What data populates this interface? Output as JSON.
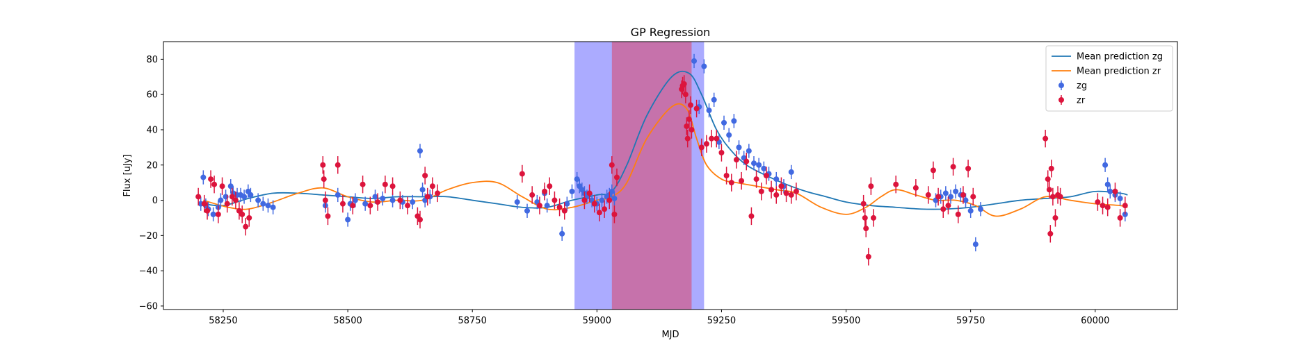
{
  "chart_data": {
    "type": "scatter",
    "title": "GP Regression",
    "xlabel": "MJD",
    "ylabel": "Flux [uJy]",
    "xlim": [
      58130,
      60165
    ],
    "ylim": [
      -62,
      90
    ],
    "xticks": [
      58250,
      58500,
      58750,
      59000,
      59250,
      59500,
      59750,
      60000
    ],
    "yticks": [
      -60,
      -40,
      -20,
      0,
      20,
      40,
      60,
      80
    ],
    "grid": false,
    "legend_position": "top-right",
    "shaded_regions": [
      {
        "x0": 58955,
        "x1": 59215,
        "color": "#0000ff",
        "opacity": 0.33
      },
      {
        "x0": 59030,
        "x1": 59190,
        "color": "#ff0000",
        "opacity": 0.33
      }
    ],
    "lines": [
      {
        "name": "Mean prediction zg",
        "color": "#1f77b4",
        "x": [
          58210,
          58250,
          58300,
          58350,
          58400,
          58450,
          58500,
          58550,
          58600,
          58650,
          58700,
          58750,
          58800,
          58850,
          58900,
          58950,
          59000,
          59030,
          59060,
          59100,
          59150,
          59185,
          59210,
          59240,
          59270,
          59300,
          59340,
          59380,
          59420,
          59460,
          59500,
          59550,
          59600,
          59650,
          59700,
          59750,
          59800,
          59850,
          59900,
          59950,
          60000,
          60050,
          60065
        ],
        "y": [
          -2,
          -3,
          1,
          4,
          4,
          3,
          2,
          1,
          2,
          2,
          2,
          0,
          -2,
          -4,
          -4,
          0,
          3,
          5,
          20,
          48,
          70,
          72,
          60,
          40,
          28,
          20,
          14,
          9,
          5,
          2,
          -1,
          -3,
          -4,
          -5,
          -5,
          -4,
          -2,
          0,
          1,
          2,
          5,
          4,
          3
        ]
      },
      {
        "name": "Mean prediction zr",
        "color": "#ff7f0e",
        "x": [
          58210,
          58260,
          58300,
          58350,
          58400,
          58450,
          58500,
          58550,
          58600,
          58650,
          58700,
          58750,
          58800,
          58850,
          58900,
          58950,
          59000,
          59030,
          59060,
          59100,
          59150,
          59180,
          59200,
          59220,
          59250,
          59280,
          59320,
          59360,
          59400,
          59450,
          59500,
          59540,
          59570,
          59600,
          59640,
          59680,
          59720,
          59760,
          59800,
          59850,
          59900,
          59950,
          60000,
          60050,
          60065
        ],
        "y": [
          0,
          -4,
          -5,
          -1,
          4,
          7,
          2,
          -1,
          0,
          0,
          6,
          10,
          10,
          2,
          -5,
          -4,
          0,
          2,
          10,
          35,
          53,
          52,
          35,
          20,
          12,
          10,
          8,
          6,
          4,
          -4,
          -8,
          -4,
          2,
          6,
          3,
          0,
          0,
          -3,
          -9,
          -5,
          2,
          0,
          -2,
          -3,
          -4
        ]
      }
    ],
    "series": [
      {
        "name": "zg",
        "color": "#4169e1",
        "err": 4,
        "x": [
          58205,
          58210,
          58215,
          58220,
          58230,
          58240,
          58245,
          58255,
          58265,
          58270,
          58278,
          58285,
          58292,
          58300,
          58305,
          58320,
          58330,
          58340,
          58350,
          58455,
          58480,
          58500,
          58505,
          58515,
          58535,
          58555,
          58570,
          58590,
          58610,
          58630,
          58645,
          58650,
          58655,
          58665,
          58840,
          58860,
          58880,
          58895,
          58900,
          58930,
          58940,
          58950,
          58960,
          58965,
          58970,
          58975,
          58980,
          58990,
          59000,
          59010,
          59020,
          59025,
          59030,
          59035,
          59195,
          59205,
          59215,
          59225,
          59235,
          59245,
          59255,
          59265,
          59275,
          59285,
          59295,
          59305,
          59315,
          59325,
          59335,
          59345,
          59360,
          59375,
          59390,
          59680,
          59690,
          59700,
          59710,
          59720,
          59730,
          59740,
          59750,
          59760,
          59770,
          60020,
          60025,
          60030,
          60040,
          60050,
          60060
        ],
        "y": [
          -2,
          13,
          -3,
          -5,
          -8,
          -4,
          0,
          2,
          8,
          4,
          3,
          3,
          2,
          5,
          3,
          0,
          -2,
          -3,
          -4,
          -3,
          3,
          -11,
          -2,
          0,
          -2,
          2,
          1,
          0,
          -1,
          -1,
          28,
          6,
          0,
          2,
          -1,
          -6,
          -1,
          4,
          -3,
          -19,
          -2,
          5,
          12,
          8,
          6,
          4,
          2,
          0,
          -2,
          0,
          2,
          3,
          5,
          1,
          79,
          53,
          76,
          51,
          57,
          33,
          44,
          37,
          45,
          30,
          24,
          28,
          21,
          20,
          18,
          15,
          12,
          8,
          16,
          0,
          2,
          4,
          2,
          5,
          3,
          0,
          -6,
          -25,
          -5,
          20,
          9,
          5,
          3,
          1,
          -8
        ]
      },
      {
        "name": "zr",
        "color": "#dc143c",
        "err": 5,
        "x": [
          58200,
          58212,
          58218,
          58225,
          58232,
          58240,
          58248,
          58258,
          58268,
          58275,
          58282,
          58288,
          58295,
          58302,
          58450,
          58452,
          58455,
          58460,
          58480,
          58490,
          58510,
          58530,
          58545,
          58560,
          58575,
          58590,
          58605,
          58620,
          58640,
          58645,
          58655,
          58660,
          58670,
          58680,
          58850,
          58870,
          58885,
          58895,
          58905,
          58915,
          58925,
          58935,
          58975,
          58985,
          58995,
          59005,
          59015,
          59025,
          59030,
          59035,
          59040,
          59170,
          59172,
          59175,
          59178,
          59180,
          59182,
          59185,
          59188,
          59190,
          59200,
          59210,
          59220,
          59230,
          59240,
          59250,
          59260,
          59270,
          59280,
          59290,
          59300,
          59310,
          59320,
          59330,
          59340,
          59350,
          59360,
          59370,
          59380,
          59390,
          59400,
          59535,
          59538,
          59540,
          59545,
          59550,
          59555,
          59600,
          59640,
          59665,
          59675,
          59685,
          59695,
          59705,
          59715,
          59725,
          59735,
          59745,
          59755,
          59900,
          59905,
          59908,
          59910,
          59912,
          59915,
          59920,
          59925,
          59930,
          60005,
          60015,
          60025,
          60040,
          60050,
          60060
        ],
        "y": [
          2,
          -2,
          -6,
          12,
          9,
          -8,
          8,
          -2,
          2,
          0,
          -6,
          -8,
          -15,
          -10,
          20,
          12,
          0,
          -9,
          20,
          -2,
          -3,
          9,
          -3,
          -1,
          9,
          8,
          0,
          -3,
          -9,
          -11,
          14,
          2,
          8,
          4,
          15,
          3,
          -3,
          5,
          8,
          0,
          -4,
          -6,
          0,
          4,
          -2,
          -7,
          -5,
          0,
          20,
          -8,
          13,
          63,
          65,
          66,
          60,
          42,
          35,
          46,
          54,
          40,
          52,
          30,
          32,
          35,
          35,
          27,
          14,
          10,
          23,
          11,
          22,
          -9,
          12,
          5,
          14,
          6,
          3,
          8,
          4,
          3,
          5,
          -2,
          -10,
          -16,
          -32,
          8,
          -10,
          9,
          7,
          3,
          17,
          2,
          -5,
          -3,
          19,
          -8,
          3,
          18,
          2,
          35,
          12,
          6,
          -19,
          18,
          2,
          -10,
          3,
          2,
          -1,
          -3,
          -4,
          5,
          -10,
          -3
        ]
      }
    ],
    "legend": [
      {
        "label": "Mean prediction zg",
        "kind": "line",
        "color": "#1f77b4"
      },
      {
        "label": "Mean prediction zr",
        "kind": "line",
        "color": "#ff7f0e"
      },
      {
        "label": "zg",
        "kind": "marker",
        "color": "#4169e1"
      },
      {
        "label": "zr",
        "kind": "marker",
        "color": "#dc143c"
      }
    ]
  }
}
